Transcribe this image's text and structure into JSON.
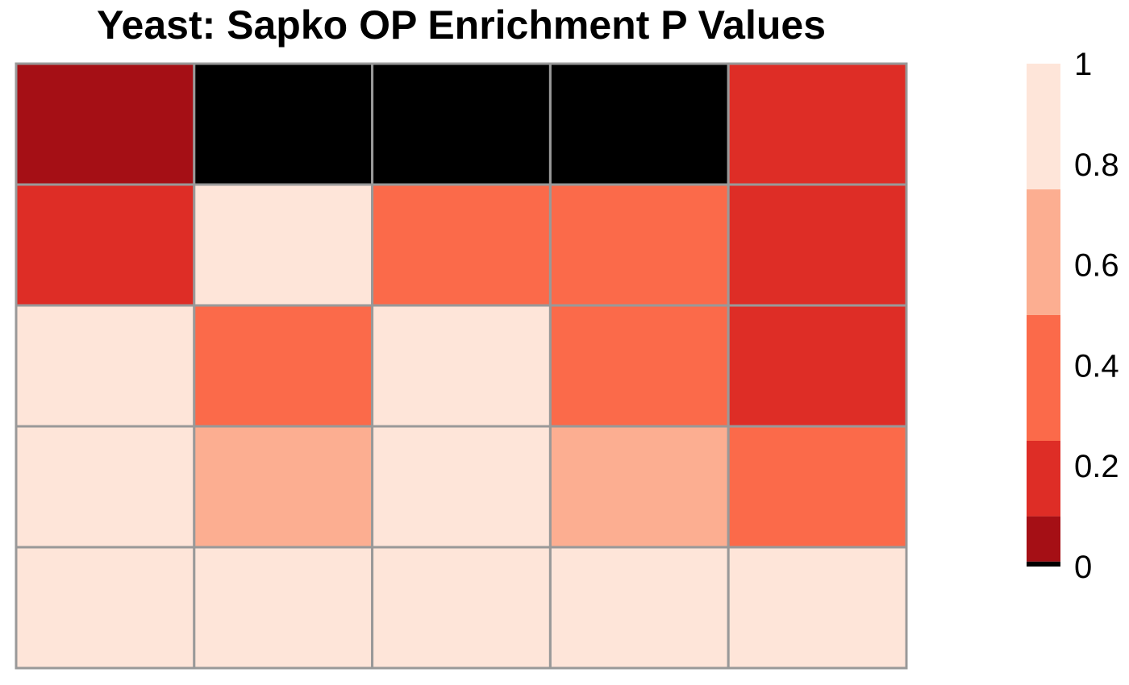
{
  "chart_data": {
    "type": "heatmap",
    "title": "Yeast: Sapko OP Enrichment P Values",
    "xlabel": "",
    "ylabel": "",
    "n_rows": 5,
    "n_cols": 5,
    "values": [
      [
        0.05,
        0.0,
        0.0,
        0.0,
        0.15
      ],
      [
        0.15,
        0.9,
        0.4,
        0.4,
        0.15
      ],
      [
        0.9,
        0.4,
        0.9,
        0.4,
        0.15
      ],
      [
        0.9,
        0.6,
        0.9,
        0.6,
        0.4
      ],
      [
        0.9,
        0.9,
        0.9,
        0.9,
        0.9
      ]
    ],
    "color_scale": {
      "breaks": [
        0,
        0.01,
        0.1,
        0.25,
        0.5,
        0.75,
        1
      ],
      "colors": [
        "#000000",
        "#a50f15",
        "#de2d26",
        "#fb6a4a",
        "#fcae91",
        "#fee5d9"
      ],
      "range": [
        0,
        1
      ],
      "ticks": [
        0,
        0.2,
        0.4,
        0.6,
        0.8,
        1
      ],
      "tick_labels": [
        "0",
        "0.2",
        "0.4",
        "0.6",
        "0.8",
        "1"
      ]
    },
    "cell_border_color": "#999999",
    "grid": true,
    "legend_position": "right"
  }
}
